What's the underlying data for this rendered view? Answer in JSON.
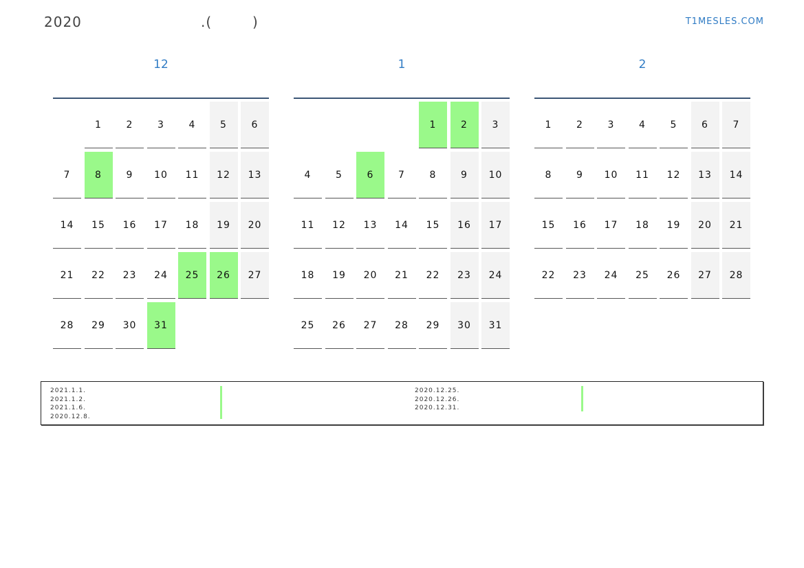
{
  "header": {
    "year": "2020",
    "subtitle": ".(        )",
    "site": "T1MESLES.COM"
  },
  "colors": {
    "holiday": "#9af98a",
    "weekend": "#f3f3f3",
    "accent": "#2f7bc4"
  },
  "months": [
    {
      "name": "12",
      "offset": 1,
      "days": 31,
      "holidays": [
        8,
        25,
        26,
        31
      ]
    },
    {
      "name": "1",
      "offset": 4,
      "days": 31,
      "holidays": [
        1,
        2,
        6
      ]
    },
    {
      "name": "2",
      "offset": 0,
      "days": 28,
      "holidays": []
    }
  ],
  "legend": {
    "left": [
      "2021.1.1.",
      "2021.1.2.",
      "2021.1.6.",
      "2020.12.8."
    ],
    "right": [
      "2020.12.25.",
      "2020.12.26.",
      "2020.12.31."
    ]
  }
}
